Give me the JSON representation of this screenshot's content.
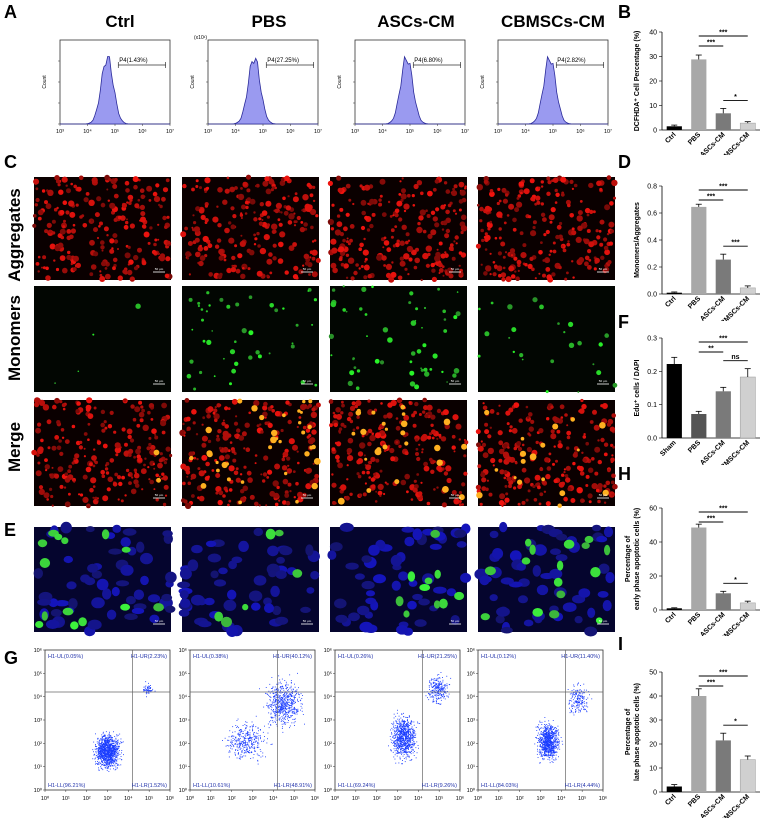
{
  "panel_letters": {
    "A": "A",
    "B": "B",
    "C": "C",
    "D": "D",
    "E": "E",
    "F": "F",
    "G": "G",
    "H": "H",
    "I": "I"
  },
  "conditions": [
    "Ctrl",
    "PBS",
    "ASCs-CM",
    "CBMSCs-CM"
  ],
  "row_labels": {
    "aggregates": "Aggregates",
    "monomers": "Monomers",
    "merge": "Merge"
  },
  "scale_label": "50 μm",
  "flow_hist": [
    {
      "gate": "P4(1.43%)",
      "exp": ""
    },
    {
      "gate": "P4(27.25%)",
      "exp": "(x10¹)"
    },
    {
      "gate": "P4(6.80%)",
      "exp": ""
    },
    {
      "gate": "P4(2.82%)",
      "exp": ""
    }
  ],
  "hist_axis": {
    "ylabel": "Count",
    "xticks": [
      "10³",
      "10⁴",
      "10⁵",
      "10⁶",
      "10⁷"
    ]
  },
  "quadrants": [
    {
      "ul": "H1-UL(0.05%)",
      "ur": "H1-UR(2.23%)",
      "ll": "H1-LL(96.21%)",
      "lr": "H1-LR(1.52%)"
    },
    {
      "ul": "H1-UL(0.38%)",
      "ur": "H1-UR(40.12%)",
      "ll": "H1-LL(10.61%)",
      "lr": "H1-LR(48.91%)"
    },
    {
      "ul": "H1-UL(0.26%)",
      "ur": "H1-UR(21.25%)",
      "ll": "H1-LL(69.24%)",
      "lr": "H1-LR(9.26%)"
    },
    {
      "ul": "H1-UL(0.12%)",
      "ur": "H1-UR(11.40%)",
      "ll": "H1-LL(84.03%)",
      "lr": "H1-LR(4.44%)"
    }
  ],
  "scatter_axis": {
    "ticks": [
      "10⁰",
      "10¹",
      "10²",
      "10³",
      "10⁴",
      "10⁵",
      "10⁶"
    ]
  },
  "colors": {
    "black": "#000000",
    "dark_gray": "#555555",
    "mid_gray": "#7a7a7a",
    "light_gray": "#a8a8a8",
    "lighter_gray": "#d0d0d0",
    "hist_fill": "#9a9af0",
    "hist_line": "#2a2a9a",
    "scatter": "#1a3cff"
  },
  "chart_data": [
    {
      "id": "B",
      "type": "bar",
      "categories": [
        "Ctrl",
        "PBS",
        "ASCs-CM",
        "CBMSCs-CM"
      ],
      "values": [
        1.5,
        28.8,
        6.8,
        2.8
      ],
      "errors": [
        0.5,
        1.8,
        2.0,
        0.6
      ],
      "ylabel": "DCFHDA⁺ Cell Percentage (%)",
      "ylim": [
        0,
        40
      ],
      "yticks": [
        0,
        10,
        20,
        30,
        40
      ],
      "significance": [
        {
          "from": 1,
          "to": 3,
          "label": "***"
        },
        {
          "from": 1,
          "to": 2,
          "label": "***"
        },
        {
          "from": 2,
          "to": 3,
          "label": "*"
        }
      ],
      "colors": [
        "#000000",
        "#a8a8a8",
        "#7a7a7a",
        "#d0d0d0"
      ]
    },
    {
      "id": "D",
      "type": "bar",
      "categories": [
        "Ctrl",
        "PBS",
        "ASCs-CM",
        "CBMSCs-CM"
      ],
      "values": [
        0.01,
        0.645,
        0.255,
        0.045
      ],
      "errors": [
        0.005,
        0.02,
        0.04,
        0.015
      ],
      "ylabel": "Monomers/Aggregates",
      "ylim": [
        0,
        0.8
      ],
      "yticks": [
        0.0,
        0.2,
        0.4,
        0.6,
        0.8
      ],
      "significance": [
        {
          "from": 1,
          "to": 3,
          "label": "***"
        },
        {
          "from": 1,
          "to": 2,
          "label": "***"
        },
        {
          "from": 2,
          "to": 3,
          "label": "***"
        }
      ],
      "colors": [
        "#000000",
        "#a8a8a8",
        "#7a7a7a",
        "#d0d0d0"
      ]
    },
    {
      "id": "F",
      "type": "bar",
      "categories": [
        "Sham",
        "PBS",
        "ASCs-CM",
        "CBMSCs-CM"
      ],
      "values": [
        0.222,
        0.072,
        0.14,
        0.183
      ],
      "errors": [
        0.02,
        0.008,
        0.012,
        0.025
      ],
      "ylabel": "Edu⁺ cells / DAPI",
      "ylim": [
        0,
        0.3
      ],
      "yticks": [
        0.0,
        0.1,
        0.2,
        0.3
      ],
      "significance": [
        {
          "from": 1,
          "to": 3,
          "label": "***"
        },
        {
          "from": 1,
          "to": 2,
          "label": "**"
        },
        {
          "from": 2,
          "to": 3,
          "label": "ns"
        }
      ],
      "colors": [
        "#000000",
        "#555555",
        "#7a7a7a",
        "#d0d0d0"
      ]
    },
    {
      "id": "H",
      "type": "bar",
      "categories": [
        "Ctrl",
        "PBS",
        "ASCs-CM",
        "CBMSCs-CM"
      ],
      "values": [
        1.0,
        48.5,
        9.8,
        4.2
      ],
      "errors": [
        0.3,
        2.0,
        1.2,
        1.0
      ],
      "ylabel": "Percentage of early phase apoptotic cells (%)",
      "ylim": [
        0,
        60
      ],
      "yticks": [
        0,
        20,
        40,
        60
      ],
      "significance": [
        {
          "from": 1,
          "to": 3,
          "label": "***"
        },
        {
          "from": 1,
          "to": 2,
          "label": "***"
        },
        {
          "from": 2,
          "to": 3,
          "label": "*"
        }
      ],
      "colors": [
        "#000000",
        "#a8a8a8",
        "#7a7a7a",
        "#d0d0d0"
      ]
    },
    {
      "id": "I",
      "type": "bar",
      "categories": [
        "Ctrl",
        "PBS",
        "ASCs-CM",
        "CBMSCs-CM"
      ],
      "values": [
        2.3,
        40.0,
        21.5,
        13.5
      ],
      "errors": [
        0.8,
        3.0,
        3.0,
        1.5
      ],
      "ylabel": "Percentage of late phase apoptotic cells (%)",
      "ylim": [
        0,
        50
      ],
      "yticks": [
        0,
        10,
        20,
        30,
        40,
        50
      ],
      "significance": [
        {
          "from": 1,
          "to": 3,
          "label": "***"
        },
        {
          "from": 1,
          "to": 2,
          "label": "***"
        },
        {
          "from": 2,
          "to": 3,
          "label": "*"
        }
      ],
      "colors": [
        "#000000",
        "#a8a8a8",
        "#7a7a7a",
        "#d0d0d0"
      ]
    }
  ]
}
